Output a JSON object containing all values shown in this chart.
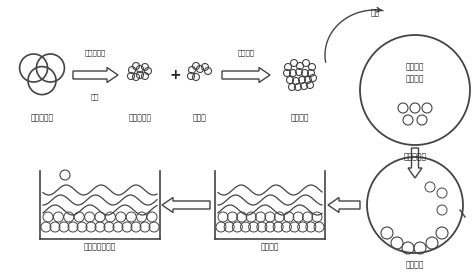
{
  "bg_color": "#ffffff",
  "line_color": "#444444",
  "text_color": "#222222",
  "labels": {
    "raw_gypsum": "原状磷石膏",
    "powder": "磷石膏粉末",
    "precursor": "前驱体",
    "mixed": "混合粉料",
    "granulator": "造粒机成型",
    "cold_binder": "冷粘结剂\n溶液喷雾",
    "invest": "投料",
    "soil": "土壤固化剂浸泡",
    "curing": "骨料养护",
    "centrifuge": "离心密实",
    "arrow1_top": "烘干、球磨",
    "arrow1_bot": "过筛",
    "arrow2": "混合均匀"
  }
}
